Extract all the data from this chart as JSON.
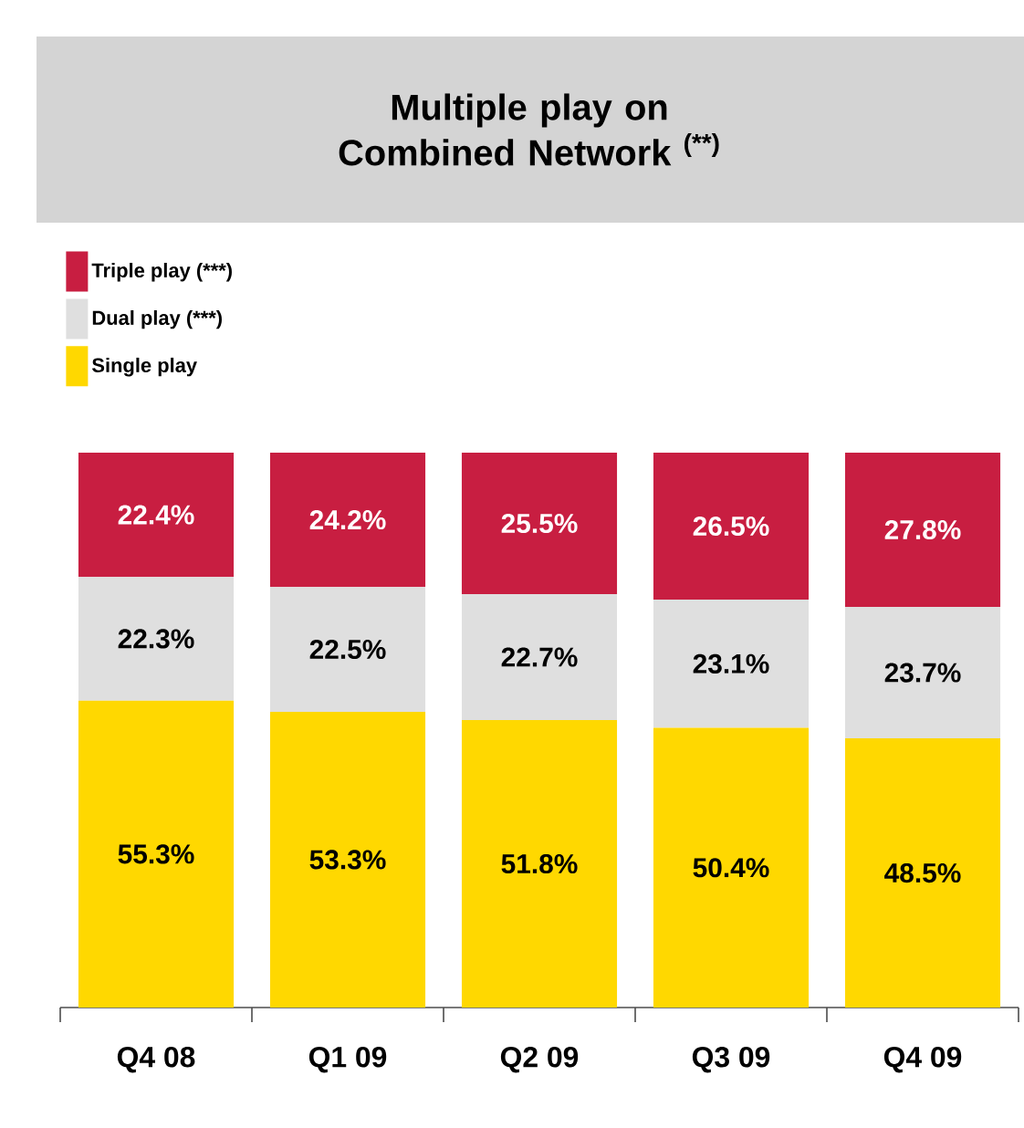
{
  "chart_data": {
    "type": "bar",
    "stacked": true,
    "title": "Multiple play on Combined Network $^{(**)}$",
    "categories": [
      "Q4 08",
      "Q1 09",
      "Q2 09",
      "Q3 09",
      "Q4 09"
    ],
    "series": [
      {
        "name": "Single play",
        "color": "#ffd800",
        "values": [
          55.3,
          53.3,
          51.8,
          50.4,
          48.5
        ],
        "value_labels": [
          "55.3%",
          "53.3%",
          "51.8%",
          "50.4%",
          "48.5%"
        ]
      },
      {
        "name": "Dual play (***)",
        "color": "#dfdfdf",
        "values": [
          22.3,
          22.5,
          22.7,
          23.1,
          23.7
        ],
        "value_labels": [
          "22.3%",
          "22.5%",
          "22.7%",
          "23.1%",
          "23.7%"
        ]
      },
      {
        "name": "Triple play (***)",
        "color": "#c81e41",
        "values": [
          22.4,
          24.2,
          25.5,
          26.5,
          27.8
        ],
        "value_labels": [
          "22.4%",
          "24.2%",
          "25.5%",
          "26.5%",
          "27.8%"
        ]
      }
    ],
    "ylim": [
      0,
      100
    ],
    "tick_labels": "x",
    "legend": "top left",
    "grid": false
  }
}
